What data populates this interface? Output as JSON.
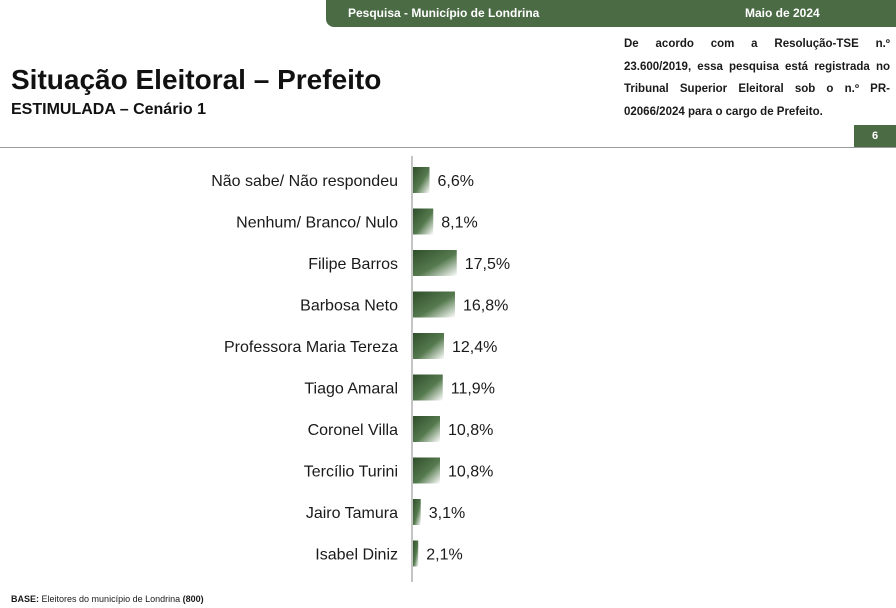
{
  "header": {
    "survey": "Pesquisa - Município de Londrina",
    "date": "Maio de 2024"
  },
  "title": "Situação Eleitoral – Prefeito",
  "subtitle": "ESTIMULADA – Cenário 1",
  "notice": "De acordo com a Resolução-TSE n.º 23.600/2019, essa pesquisa está registrada no Tribunal Superior Eleitoral sob o n.º PR-02066/2024 para o cargo de Prefeito.",
  "page_number": "6",
  "footer": {
    "base_label": "BASE:",
    "base_text": "Eleitores do município de Londrina",
    "base_count": "(800)"
  },
  "colors": {
    "accent": "#4b6b45",
    "bar_dark": "#3f5f38",
    "bar_light": "#ffffff"
  },
  "chart_data": {
    "type": "bar",
    "orientation": "horizontal",
    "categories": [
      "Não sabe/ Não respondeu",
      "Nenhum/ Branco/ Nulo",
      "Filipe Barros",
      "Barbosa Neto",
      "Professora Maria Tereza",
      "Tiago Amaral",
      "Coronel Villa",
      "Tercílio Turini",
      "Jairo Tamura",
      "Isabel Diniz"
    ],
    "values": [
      6.6,
      8.1,
      17.5,
      16.8,
      12.4,
      11.9,
      10.8,
      10.8,
      3.1,
      2.1
    ],
    "value_labels": [
      "6,6%",
      "8,1%",
      "17,5%",
      "16,8%",
      "12,4%",
      "11,9%",
      "10,8%",
      "10,8%",
      "3,1%",
      "2,1%"
    ],
    "unit": "%",
    "grid": false,
    "legend": "none"
  }
}
